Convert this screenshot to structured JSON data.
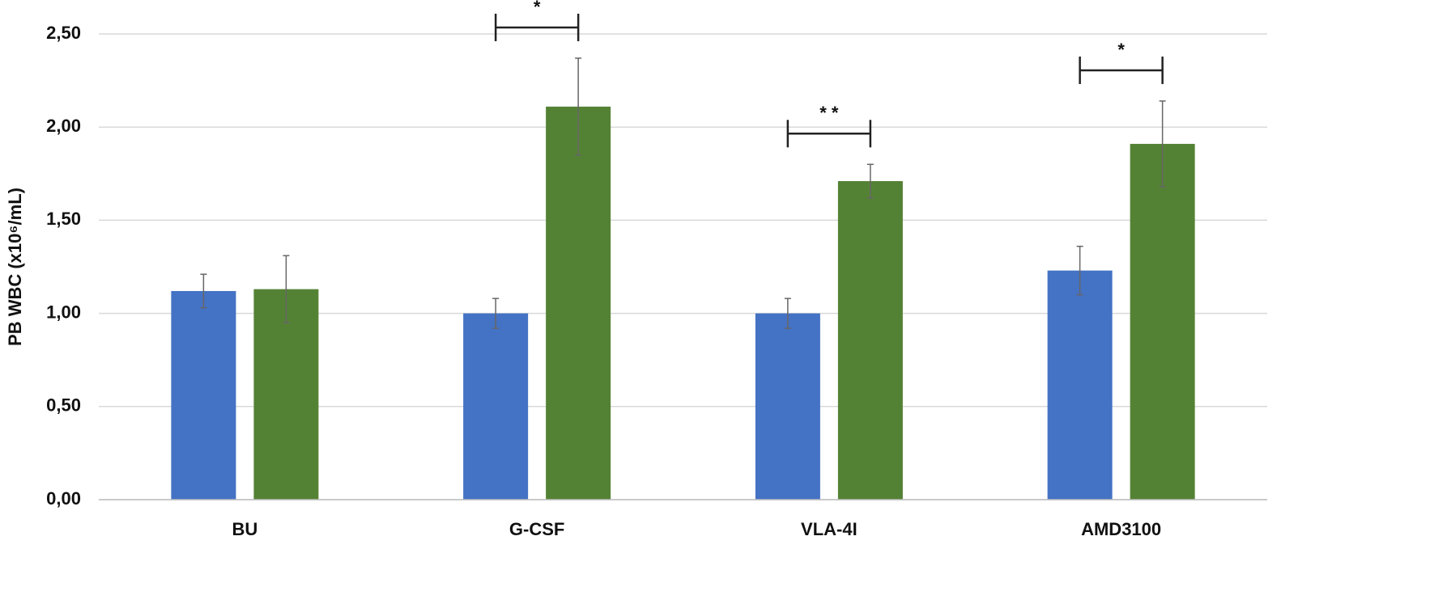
{
  "chart_data": {
    "type": "bar",
    "y_label": "PB WBC (x10⁶/mL)",
    "categories": [
      "BU",
      "G-CSF",
      "VLA-4I",
      "AMD3100"
    ],
    "series": [
      {
        "color": "#4472c4",
        "values": [
          1.12,
          1.0,
          1.0,
          1.23
        ],
        "errors": [
          0.09,
          0.08,
          0.08,
          0.13
        ]
      },
      {
        "color": "#548235",
        "values": [
          1.13,
          2.11,
          1.71,
          1.91
        ],
        "errors": [
          0.18,
          0.26,
          0.09,
          0.23
        ]
      }
    ],
    "significance": [
      null,
      "*",
      "* *",
      "*"
    ],
    "ylim": [
      0,
      2.5
    ],
    "yticks": [
      {
        "value": 0,
        "label": "0,00"
      },
      {
        "value": 0.5,
        "label": "0,50"
      },
      {
        "value": 1,
        "label": "1,00"
      },
      {
        "value": 1.5,
        "label": "1,50"
      },
      {
        "value": 2,
        "label": "2,00"
      },
      {
        "value": 2.5,
        "label": "2,50"
      }
    ],
    "grid": true
  }
}
